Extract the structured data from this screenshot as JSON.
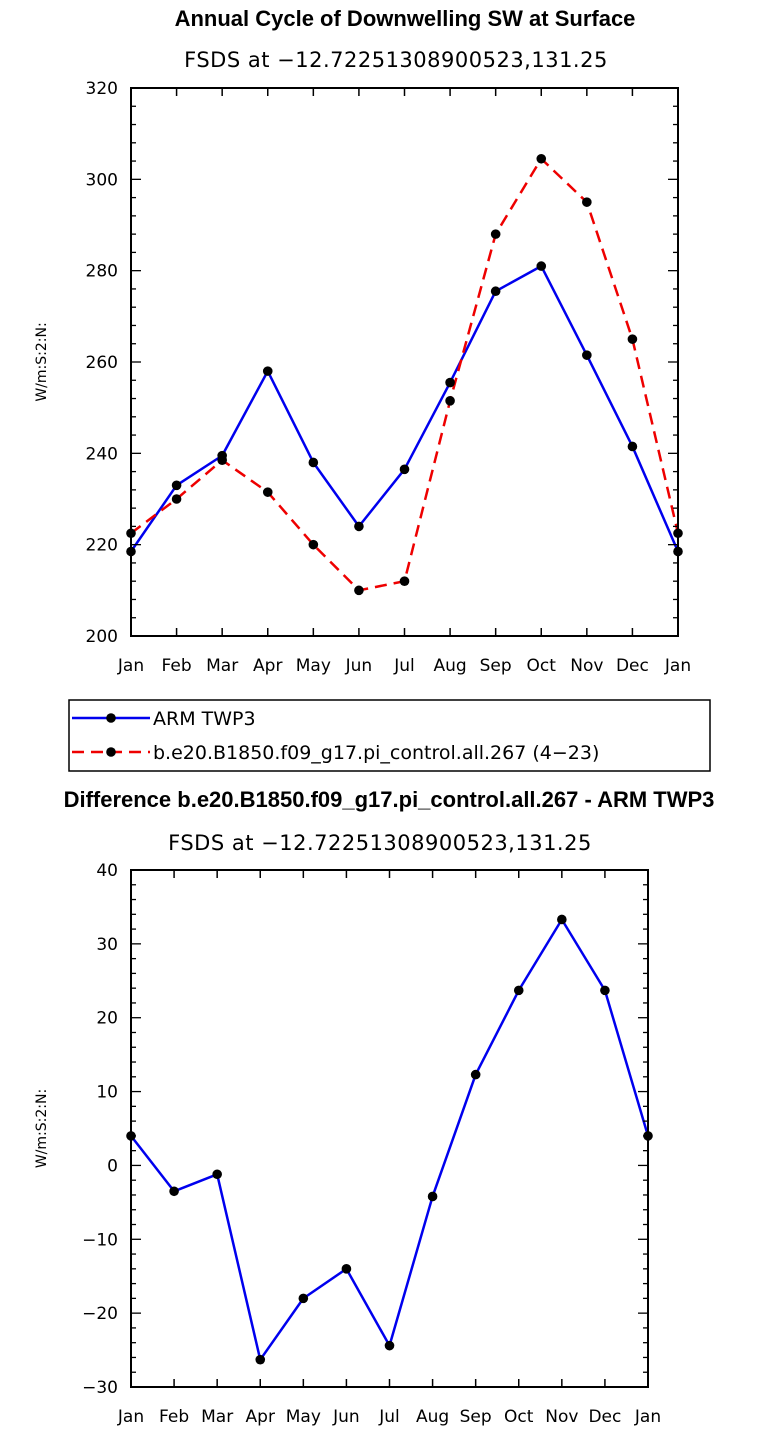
{
  "chart_data": [
    {
      "type": "line",
      "title": "Annual Cycle of Downwelling SW at Surface",
      "subtitle": "FSDS at −12.72251308900523,131.25",
      "ylabel": "W/m:S:2:N:",
      "ylim": [
        200,
        320
      ],
      "yticks": [
        200,
        220,
        240,
        260,
        280,
        300,
        320
      ],
      "categories": [
        "Jan",
        "Feb",
        "Mar",
        "Apr",
        "May",
        "Jun",
        "Jul",
        "Aug",
        "Sep",
        "Oct",
        "Nov",
        "Dec",
        "Jan"
      ],
      "series": [
        {
          "name": "ARM TWP3",
          "color": "#0000ee",
          "dash": "solid",
          "values": [
            218.5,
            233,
            239.5,
            258,
            238,
            224,
            236.5,
            255.5,
            275.5,
            281,
            261.5,
            241.5,
            218.5
          ]
        },
        {
          "name": "b.e20.B1850.f09_g17.pi_control.all.267 (4−23)",
          "color": "#ee0000",
          "dash": "dashed",
          "values": [
            222.5,
            230,
            238.5,
            231.5,
            220,
            210,
            212,
            251.5,
            288,
            304.5,
            295,
            265,
            222.5
          ]
        }
      ],
      "legend": "below"
    },
    {
      "type": "line",
      "title": "Difference b.e20.B1850.f09_g17.pi_control.all.267 - ARM TWP3",
      "subtitle": "FSDS at −12.72251308900523,131.25",
      "ylabel": "W/m:S:2:N:",
      "ylim": [
        -30,
        40
      ],
      "yticks": [
        -30,
        -20,
        -10,
        0,
        10,
        20,
        30,
        40
      ],
      "categories": [
        "Jan",
        "Feb",
        "Mar",
        "Apr",
        "May",
        "Jun",
        "Jul",
        "Aug",
        "Sep",
        "Oct",
        "Nov",
        "Dec",
        "Jan"
      ],
      "series": [
        {
          "color": "#0000ee",
          "dash": "solid",
          "values": [
            4,
            -3.5,
            -1.2,
            -26.3,
            -18,
            -14,
            -24.4,
            -4.2,
            12.3,
            23.7,
            33.3,
            23.7,
            4
          ]
        }
      ]
    }
  ]
}
